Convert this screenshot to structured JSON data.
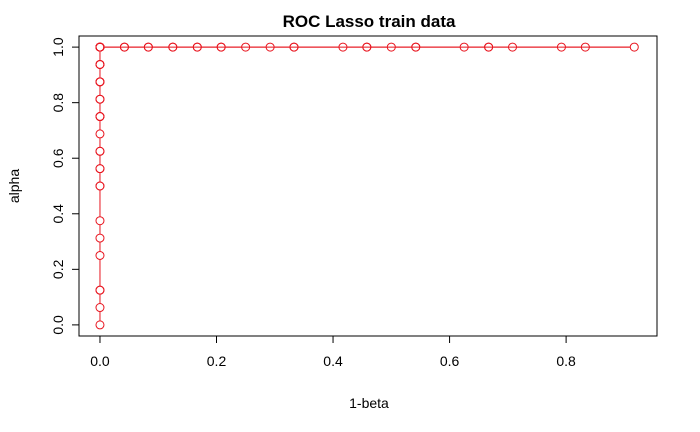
{
  "chart_data": {
    "type": "line",
    "title": "ROC Lasso train data",
    "xlabel": "1-beta",
    "ylabel": "alpha",
    "xlim": [
      -0.036,
      0.956
    ],
    "ylim": [
      -0.04,
      1.04
    ],
    "xticks": [
      "0.0",
      "0.2",
      "0.4",
      "0.6",
      "0.8"
    ],
    "xtick_values": [
      0,
      0.2,
      0.4,
      0.6,
      0.8
    ],
    "yticks": [
      "0.0",
      "0.2",
      "0.4",
      "0.6",
      "0.8",
      "1.0"
    ],
    "ytick_values": [
      0,
      0.2,
      0.4,
      0.6,
      0.8,
      1.0
    ],
    "grid": false,
    "legend": "none",
    "colors": {
      "series": "#e8141e",
      "axes": "#000000"
    },
    "series": [
      {
        "marker": "open-circle",
        "x": [
          0,
          0,
          0,
          0,
          0,
          0,
          0,
          0,
          0,
          0,
          0,
          0,
          0,
          0,
          0,
          0,
          0,
          0,
          0,
          0,
          0,
          0,
          0,
          0,
          0,
          0,
          0,
          0,
          0,
          0,
          0,
          0,
          0.042,
          0.042,
          0.083,
          0.083,
          0.125,
          0.125,
          0.167,
          0.167,
          0.208,
          0.208,
          0.25,
          0.292,
          0.333,
          0.333,
          0.417,
          0.458,
          0.458,
          0.5,
          0.542,
          0.542,
          0.625,
          0.667,
          0.667,
          0.708,
          0.792,
          0.833,
          0.917,
          0.0
        ],
        "y": [
          0,
          0.0625,
          0.125,
          0.125,
          0.25,
          0.3125,
          0.375,
          0.5,
          0.5,
          0.5625,
          0.5625,
          0.625,
          0.625,
          0.6875,
          0.75,
          0.75,
          0.75,
          0.8125,
          0.8125,
          0.875,
          0.875,
          0.875,
          0.9375,
          0.9375,
          0.9375,
          1,
          1,
          1,
          1,
          1,
          1,
          1,
          1,
          1,
          1,
          1,
          1,
          1,
          1,
          1,
          1,
          1,
          1,
          1,
          1,
          1,
          1,
          1,
          1,
          1,
          1,
          1,
          1,
          1,
          1,
          1,
          1,
          1,
          1,
          1
        ]
      }
    ]
  }
}
